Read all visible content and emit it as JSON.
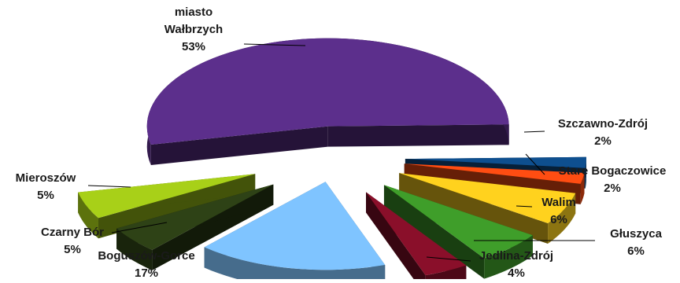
{
  "chart_data": {
    "type": "pie",
    "exploded": true,
    "three_d": true,
    "legend": "none",
    "slices": [
      {
        "label_lines": [
          "miasto",
          "Wałbrzych"
        ],
        "value": 53,
        "value_label": "53%",
        "color": "#5c2f8c"
      },
      {
        "label_lines": [
          "Szczawno-Zdrój"
        ],
        "value": 2,
        "value_label": "2%",
        "color": "#0e4f8f"
      },
      {
        "label_lines": [
          "Stare Bogaczowice"
        ],
        "value": 2,
        "value_label": "2%",
        "color": "#ff4d12"
      },
      {
        "label_lines": [
          "Walim"
        ],
        "value": 6,
        "value_label": "6%",
        "color": "#ffd21e"
      },
      {
        "label_lines": [
          "Głuszyca"
        ],
        "value": 6,
        "value_label": "6%",
        "color": "#3f9e2a"
      },
      {
        "label_lines": [
          "Jedlina-Zdrój"
        ],
        "value": 4,
        "value_label": "4%",
        "color": "#8a0f2a"
      },
      {
        "label_lines": [
          "Boguszów-Gorce"
        ],
        "value": 17,
        "value_label": "17%",
        "color": "#7fc4ff"
      },
      {
        "label_lines": [
          "Czarny Bór"
        ],
        "value": 5,
        "value_label": "5%",
        "color": "#2e4216"
      },
      {
        "label_lines": [
          "Mieroszów"
        ],
        "value": 5,
        "value_label": "5%",
        "color": "#a8d018"
      }
    ]
  }
}
